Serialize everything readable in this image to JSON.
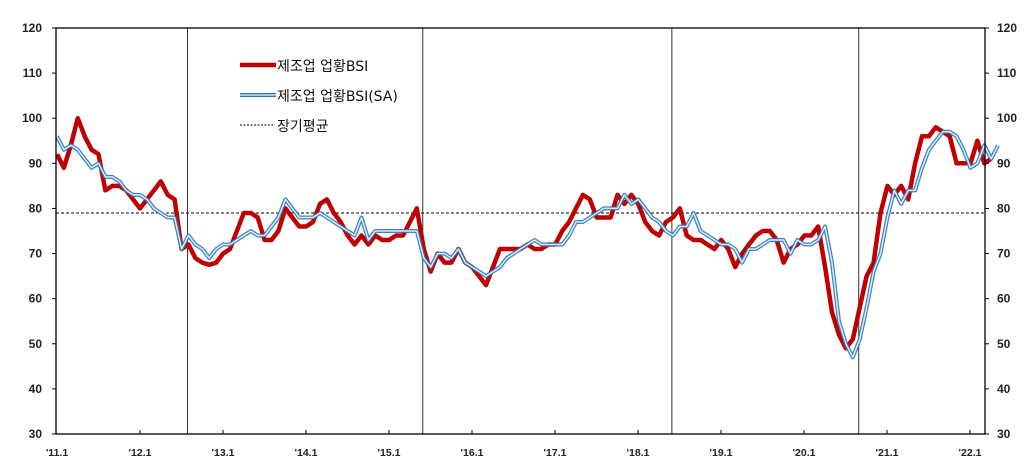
{
  "chart_data": {
    "type": "line",
    "title": "",
    "xlabel": "",
    "ylabel": "",
    "ylim": [
      30,
      120
    ],
    "yticks": [
      30,
      40,
      50,
      60,
      70,
      80,
      90,
      100,
      110,
      120
    ],
    "y_axis_both_sides": true,
    "grid": false,
    "legend_position": "upper-left-inside",
    "x_start": "2011-01",
    "x_frequency": "monthly",
    "x_tick_labels": [
      "'11.1",
      "'12.1",
      "'13.1",
      "'14.1",
      "'15.1",
      "'16.1",
      "'17.1",
      "'18.1",
      "'19.1",
      "'20.1",
      "'21.1",
      "'22.1"
    ],
    "vertical_markers": [
      "2012-08",
      "2015-06",
      "2018-06",
      "2020-09"
    ],
    "series": [
      {
        "name": "제조업 업황BSI",
        "color": "#c00000",
        "style": "thick-solid",
        "values": [
          92,
          89,
          94,
          100,
          96,
          93,
          92,
          84,
          85,
          85,
          84,
          82,
          80,
          82,
          84,
          86,
          83,
          82,
          71,
          72,
          69,
          68,
          67.5,
          68,
          70,
          71,
          75,
          79,
          79,
          78,
          73,
          73,
          75,
          80,
          78,
          76,
          76,
          77,
          81,
          82,
          79,
          77,
          74,
          72,
          74,
          72,
          74,
          73,
          73,
          74,
          74,
          77,
          80,
          71,
          66,
          70,
          68,
          68,
          71,
          68,
          67,
          65,
          63,
          67,
          71,
          71,
          71,
          71,
          72,
          71,
          71,
          72,
          72,
          75,
          77,
          80,
          83,
          82,
          78,
          78,
          78,
          83,
          81,
          83,
          81,
          77,
          75,
          74,
          77,
          78,
          80,
          74,
          73,
          73,
          72,
          71,
          73,
          71,
          67,
          70,
          72,
          74,
          75,
          75,
          73,
          68,
          71,
          72,
          74,
          74,
          76,
          67,
          57,
          52,
          49,
          51,
          58,
          65,
          68,
          79,
          85,
          83,
          85,
          82,
          90,
          96,
          96,
          98,
          97,
          96,
          90,
          90,
          90,
          95,
          90,
          91
        ],
        "note": "approximate monthly values read from pixel positions"
      },
      {
        "name": "제조업 업황BSI(SA)",
        "color": "#2e75b6",
        "style": "double-line-light-blue",
        "values": [
          96,
          93,
          94,
          93,
          91,
          89,
          90,
          87,
          87,
          86,
          84,
          83,
          83,
          82,
          80,
          79,
          78,
          78,
          71,
          74,
          72,
          71,
          69,
          71,
          72,
          72,
          73,
          74,
          75,
          74,
          74,
          76,
          78,
          82,
          80,
          78,
          78,
          78,
          79,
          78,
          77,
          76,
          75,
          74,
          78,
          73,
          75,
          75,
          75,
          75,
          75,
          75,
          75,
          69,
          67,
          70,
          70,
          69,
          71,
          68,
          67,
          66,
          65,
          66,
          67,
          69,
          70,
          71,
          72,
          73,
          72,
          72,
          72,
          72,
          74,
          77,
          77,
          78,
          79,
          80,
          80,
          80,
          83,
          81,
          82,
          80,
          78,
          77,
          75,
          74,
          76,
          76,
          79,
          75,
          74,
          73,
          72,
          72,
          71,
          68,
          71,
          71,
          72,
          73,
          73,
          73,
          70,
          73,
          72,
          72,
          73,
          76,
          68,
          55,
          50,
          47,
          51,
          58,
          66,
          70,
          78,
          84,
          81,
          84,
          84,
          89,
          93,
          95,
          97,
          97,
          96,
          93,
          89,
          90,
          94,
          91,
          94
        ]
      },
      {
        "name": "장기평균",
        "color": "#000000",
        "style": "dotted",
        "value": 79
      }
    ]
  },
  "legend": {
    "items": [
      {
        "label": "제조업 업황BSI"
      },
      {
        "label": "제조업 업황BSI(SA)"
      },
      {
        "label": "장기평균"
      }
    ]
  }
}
